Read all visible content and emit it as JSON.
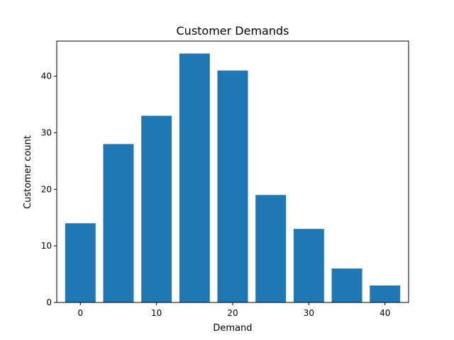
{
  "chart_data": {
    "type": "bar",
    "title": "Customer Demands",
    "xlabel": "Demand",
    "ylabel": "Customer count",
    "x": [
      0,
      5,
      10,
      15,
      20,
      25,
      30,
      35,
      40
    ],
    "values": [
      14,
      28,
      33,
      44,
      41,
      19,
      13,
      6,
      3
    ],
    "bar_width": 4,
    "xlim": [
      -3.1,
      43.1
    ],
    "ylim": [
      0,
      46.2
    ],
    "xticks": [
      0,
      10,
      20,
      30,
      40
    ],
    "yticks": [
      0,
      10,
      20,
      30,
      40
    ],
    "grid": false,
    "colors": {
      "bar": "#1f77b4"
    }
  }
}
